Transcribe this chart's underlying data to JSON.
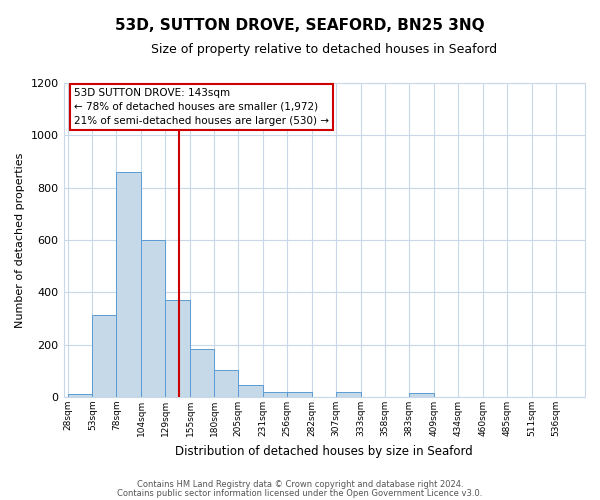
{
  "title": "53D, SUTTON DROVE, SEAFORD, BN25 3NQ",
  "subtitle": "Size of property relative to detached houses in Seaford",
  "xlabel": "Distribution of detached houses by size in Seaford",
  "ylabel": "Number of detached properties",
  "bar_left_edges": [
    28,
    53,
    78,
    104,
    129,
    155,
    180,
    205,
    231,
    256,
    282,
    307,
    333,
    358,
    383,
    409,
    434,
    460,
    485,
    511
  ],
  "bar_widths": [
    25,
    25,
    26,
    25,
    26,
    25,
    25,
    26,
    25,
    26,
    25,
    26,
    25,
    25,
    26,
    25,
    26,
    25,
    26,
    25
  ],
  "bar_heights": [
    10,
    315,
    860,
    600,
    370,
    185,
    105,
    45,
    20,
    20,
    0,
    20,
    0,
    0,
    15,
    0,
    0,
    0,
    0,
    0
  ],
  "bar_color": "#c5d9e8",
  "bar_edgecolor": "#5b9bd5",
  "tick_labels": [
    "28sqm",
    "53sqm",
    "78sqm",
    "104sqm",
    "129sqm",
    "155sqm",
    "180sqm",
    "205sqm",
    "231sqm",
    "256sqm",
    "282sqm",
    "307sqm",
    "333sqm",
    "358sqm",
    "383sqm",
    "409sqm",
    "434sqm",
    "460sqm",
    "485sqm",
    "511sqm",
    "536sqm"
  ],
  "vline_x": 143,
  "vline_color": "#cc0000",
  "ylim": [
    0,
    1200
  ],
  "yticks": [
    0,
    200,
    400,
    600,
    800,
    1000,
    1200
  ],
  "annotation_title": "53D SUTTON DROVE: 143sqm",
  "annotation_line1": "← 78% of detached houses are smaller (1,972)",
  "annotation_line2": "21% of semi-detached houses are larger (530) →",
  "footer1": "Contains HM Land Registry data © Crown copyright and database right 2024.",
  "footer2": "Contains public sector information licensed under the Open Government Licence v3.0.",
  "bg_color": "#ffffff",
  "plot_bg_color": "#ffffff",
  "grid_color": "#c8d8e8"
}
